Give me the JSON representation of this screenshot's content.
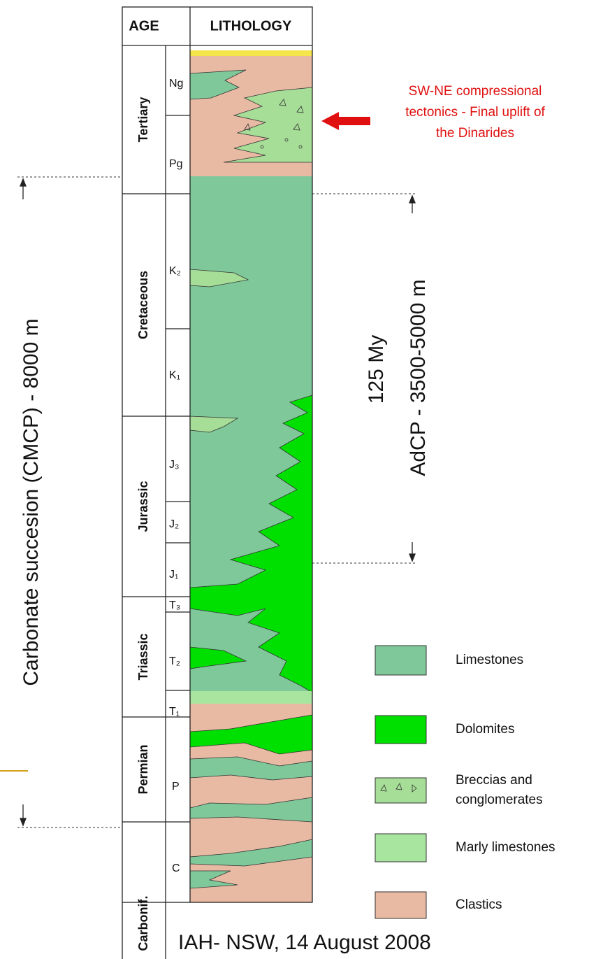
{
  "header": {
    "age": "AGE",
    "lithology": "LITHOLOGY"
  },
  "periods": [
    {
      "label": "Tertiary",
      "epochs": [
        "Ng",
        "Pg"
      ]
    },
    {
      "label": "Cretaceous",
      "epochs": [
        "K₂",
        "K₁"
      ]
    },
    {
      "label": "Jurassic",
      "epochs": [
        "J₃",
        "J₂",
        "J₁"
      ]
    },
    {
      "label": "Triassic",
      "epochs": [
        "T₃",
        "T₂",
        "T₁"
      ]
    },
    {
      "label": "Permian",
      "epochs": [
        "P"
      ]
    },
    {
      "label": "Carbonif.",
      "epochs": [
        "C"
      ]
    }
  ],
  "annotation": [
    "SW-NE compressional",
    "tectonics - Final uplift of",
    "the Dinarides"
  ],
  "left_label": "Carbonate succesion (CMCP) - 8000 m",
  "right_labels": {
    "duration": "125 My",
    "thickness": "AdCP - 3500-5000 m"
  },
  "legend": [
    "Limestones",
    "Dolomites",
    "Breccias and",
    "conglomerates",
    "Marly limestones",
    "Clastics"
  ],
  "footer": "IAH- NSW, 14 August 2008"
}
